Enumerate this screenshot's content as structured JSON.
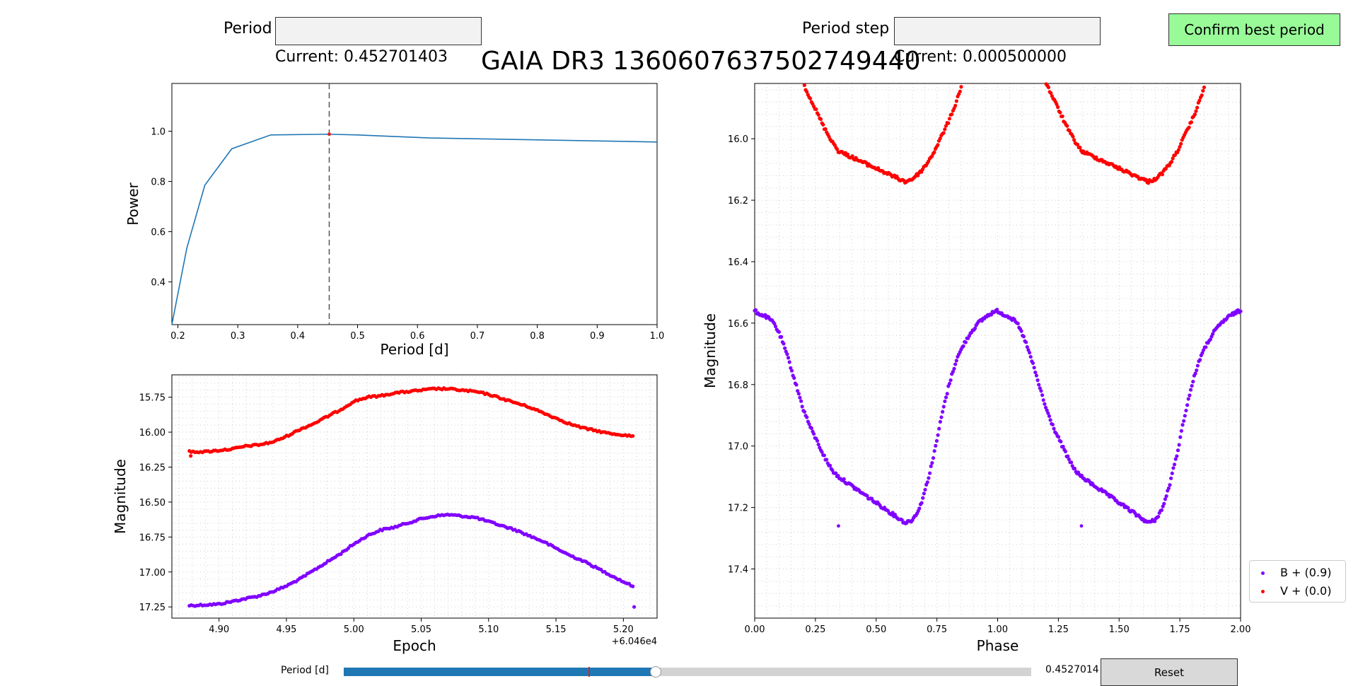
{
  "controls": {
    "period_label": "Period",
    "period_value": "",
    "period_current": "Current: 0.452701403",
    "step_label": "Period step",
    "step_value": "",
    "step_current": "Current: 0.000500000",
    "confirm_label": "Confirm best period",
    "reset_label": "Reset",
    "slider_label": "Period [d]",
    "slider_value_text": "0.4527014",
    "slider_fraction": 0.454,
    "slider_marker_fraction": 0.356
  },
  "title": "GAIA DR3 1360607637502749440",
  "colors": {
    "periodogram_line": "#1f77b4",
    "marker": "#d62728",
    "b_series": "#8000ff",
    "v_series": "#ff0000",
    "slider_fill": "#1f77b4",
    "slider_track": "#d3d3d3"
  },
  "legend": {
    "b_label": "B + (0.9)",
    "v_label": "V + (0.0)"
  },
  "chart_data": [
    {
      "type": "line",
      "name": "periodogram",
      "xlabel": "Period [d]",
      "ylabel": "Power",
      "xlim": [
        0.19,
        1.0
      ],
      "ylim": [
        0.23,
        1.19
      ],
      "xticks": [
        0.2,
        0.3,
        0.4,
        0.5,
        0.6,
        0.7,
        0.8,
        0.9,
        1.0
      ],
      "xticklabels": [
        "0.2",
        "0.3",
        "0.4",
        "0.5",
        "0.6",
        "0.7",
        "0.8",
        "0.9",
        "1.0"
      ],
      "yticks": [
        0.4,
        0.6,
        0.8,
        1.0
      ],
      "yticklabels": [
        "0.4",
        "0.6",
        "0.8",
        "1.0"
      ],
      "x": [
        0.19,
        0.215,
        0.245,
        0.29,
        0.355,
        0.45,
        0.5,
        0.62,
        1.0
      ],
      "y": [
        0.23,
        0.535,
        0.785,
        0.93,
        0.985,
        0.988,
        0.985,
        0.973,
        0.957
      ],
      "selected_period": 0.4527,
      "selected_power": 0.988,
      "grid": false
    },
    {
      "type": "scatter",
      "name": "light-curve",
      "xlabel": "Epoch",
      "ylabel": "Magnitude",
      "offset_text": "+6.046e4",
      "xlim": [
        4.865,
        5.225
      ],
      "ylim": [
        17.33,
        15.59
      ],
      "xticks": [
        4.9,
        4.95,
        5.0,
        5.05,
        5.1,
        5.15,
        5.2
      ],
      "xticklabels": [
        "4.90",
        "4.95",
        "5.00",
        "5.05",
        "5.10",
        "5.15",
        "5.20"
      ],
      "yticks": [
        15.75,
        16.0,
        16.25,
        16.5,
        16.75,
        17.0,
        17.25
      ],
      "yticklabels": [
        "15.75",
        "16.00",
        "16.25",
        "16.50",
        "16.75",
        "17.00",
        "17.25"
      ],
      "grid": true,
      "series": [
        {
          "label": "B",
          "color": "#8000ff",
          "x": [
            4.878,
            4.89,
            4.9,
            4.91,
            4.92,
            4.93,
            4.94,
            4.95,
            4.96,
            4.97,
            4.98,
            4.99,
            5.0,
            5.01,
            5.02,
            5.03,
            5.04,
            5.05,
            5.06,
            5.07,
            5.08,
            5.09,
            5.1,
            5.11,
            5.12,
            5.13,
            5.14,
            5.15,
            5.16,
            5.17,
            5.18,
            5.19,
            5.2,
            5.207
          ],
          "y": [
            17.24,
            17.235,
            17.23,
            17.21,
            17.19,
            17.17,
            17.14,
            17.1,
            17.05,
            16.99,
            16.93,
            16.87,
            16.8,
            16.74,
            16.7,
            16.68,
            16.65,
            16.62,
            16.6,
            16.59,
            16.6,
            16.61,
            16.64,
            16.67,
            16.7,
            16.74,
            16.78,
            16.83,
            16.88,
            16.92,
            16.97,
            17.02,
            17.07,
            17.1
          ]
        },
        {
          "label": "V",
          "color": "#ff0000",
          "x": [
            4.878,
            4.89,
            4.9,
            4.91,
            4.92,
            4.93,
            4.94,
            4.95,
            4.96,
            4.97,
            4.98,
            4.99,
            5.0,
            5.01,
            5.02,
            5.03,
            5.04,
            5.05,
            5.06,
            5.07,
            5.08,
            5.09,
            5.1,
            5.11,
            5.12,
            5.13,
            5.14,
            5.15,
            5.16,
            5.17,
            5.18,
            5.19,
            5.2,
            5.207
          ],
          "y": [
            16.14,
            16.14,
            16.13,
            16.12,
            16.1,
            16.09,
            16.07,
            16.03,
            15.98,
            15.94,
            15.89,
            15.84,
            15.78,
            15.75,
            15.74,
            15.72,
            15.71,
            15.7,
            15.69,
            15.69,
            15.7,
            15.71,
            15.73,
            15.76,
            15.79,
            15.82,
            15.86,
            15.9,
            15.94,
            15.97,
            15.99,
            16.01,
            16.02,
            16.03
          ]
        }
      ]
    },
    {
      "type": "scatter",
      "name": "phase-plot",
      "xlabel": "Phase",
      "ylabel": "Magnitude",
      "xlim": [
        0.0,
        2.0
      ],
      "ylim": [
        17.56,
        15.82
      ],
      "xticks": [
        0.0,
        0.25,
        0.5,
        0.75,
        1.0,
        1.25,
        1.5,
        1.75,
        2.0
      ],
      "xticklabels": [
        "0.00",
        "0.25",
        "0.50",
        "0.75",
        "1.00",
        "1.25",
        "1.50",
        "1.75",
        "2.00"
      ],
      "yticks": [
        16.0,
        16.2,
        16.4,
        16.6,
        16.8,
        17.0,
        17.2,
        17.4
      ],
      "yticklabels": [
        "16.0",
        "16.2",
        "16.4",
        "16.6",
        "16.8",
        "17.0",
        "17.2",
        "17.4"
      ],
      "grid": true,
      "series": [
        {
          "label": "B + (0.9)",
          "color": "#8000ff",
          "x": [
            0.0,
            0.02,
            0.05,
            0.08,
            0.11,
            0.14,
            0.17,
            0.2,
            0.23,
            0.26,
            0.29,
            0.32,
            0.345,
            0.62,
            0.65,
            0.68,
            0.71,
            0.74,
            0.77,
            0.8,
            0.83,
            0.86,
            0.89,
            0.92,
            0.95,
            0.98,
            1.0,
            1.02,
            1.05,
            1.08,
            1.11,
            1.14,
            1.17,
            1.2,
            1.23,
            1.26,
            1.29,
            1.32,
            1.345,
            1.62,
            1.65,
            1.68,
            1.71,
            1.74,
            1.77,
            1.8,
            1.83,
            1.86,
            1.89,
            1.92,
            1.95,
            1.98,
            2.0
          ],
          "y": [
            16.56,
            16.57,
            16.58,
            16.6,
            16.65,
            16.72,
            16.8,
            16.88,
            16.94,
            16.99,
            17.04,
            17.08,
            17.1,
            17.25,
            17.24,
            17.2,
            17.12,
            17.02,
            16.9,
            16.8,
            16.72,
            16.67,
            16.63,
            16.6,
            16.58,
            16.565,
            16.56,
            16.57,
            16.58,
            16.6,
            16.65,
            16.72,
            16.8,
            16.88,
            16.94,
            16.99,
            17.04,
            17.08,
            17.1,
            17.25,
            17.24,
            17.2,
            17.12,
            17.02,
            16.9,
            16.8,
            16.72,
            16.67,
            16.63,
            16.6,
            16.58,
            16.565,
            16.56
          ]
        },
        {
          "label": "V + (0.0)",
          "color": "#ff0000",
          "x": [
            0.2,
            0.23,
            0.26,
            0.29,
            0.32,
            0.345,
            0.62,
            0.65,
            0.68,
            0.71,
            0.74,
            0.77,
            0.8,
            0.83,
            0.85,
            1.2,
            1.23,
            1.26,
            1.29,
            1.32,
            1.345,
            1.62,
            1.65,
            1.68,
            1.71,
            1.74,
            1.77,
            1.8,
            1.83,
            1.85
          ],
          "y": [
            15.82,
            15.87,
            15.92,
            15.97,
            16.01,
            16.04,
            16.14,
            16.13,
            16.11,
            16.08,
            16.04,
            15.99,
            15.94,
            15.88,
            15.83,
            15.82,
            15.87,
            15.92,
            15.97,
            16.01,
            16.04,
            16.14,
            16.13,
            16.11,
            16.08,
            16.04,
            15.99,
            15.94,
            15.88,
            15.83
          ]
        }
      ]
    }
  ]
}
